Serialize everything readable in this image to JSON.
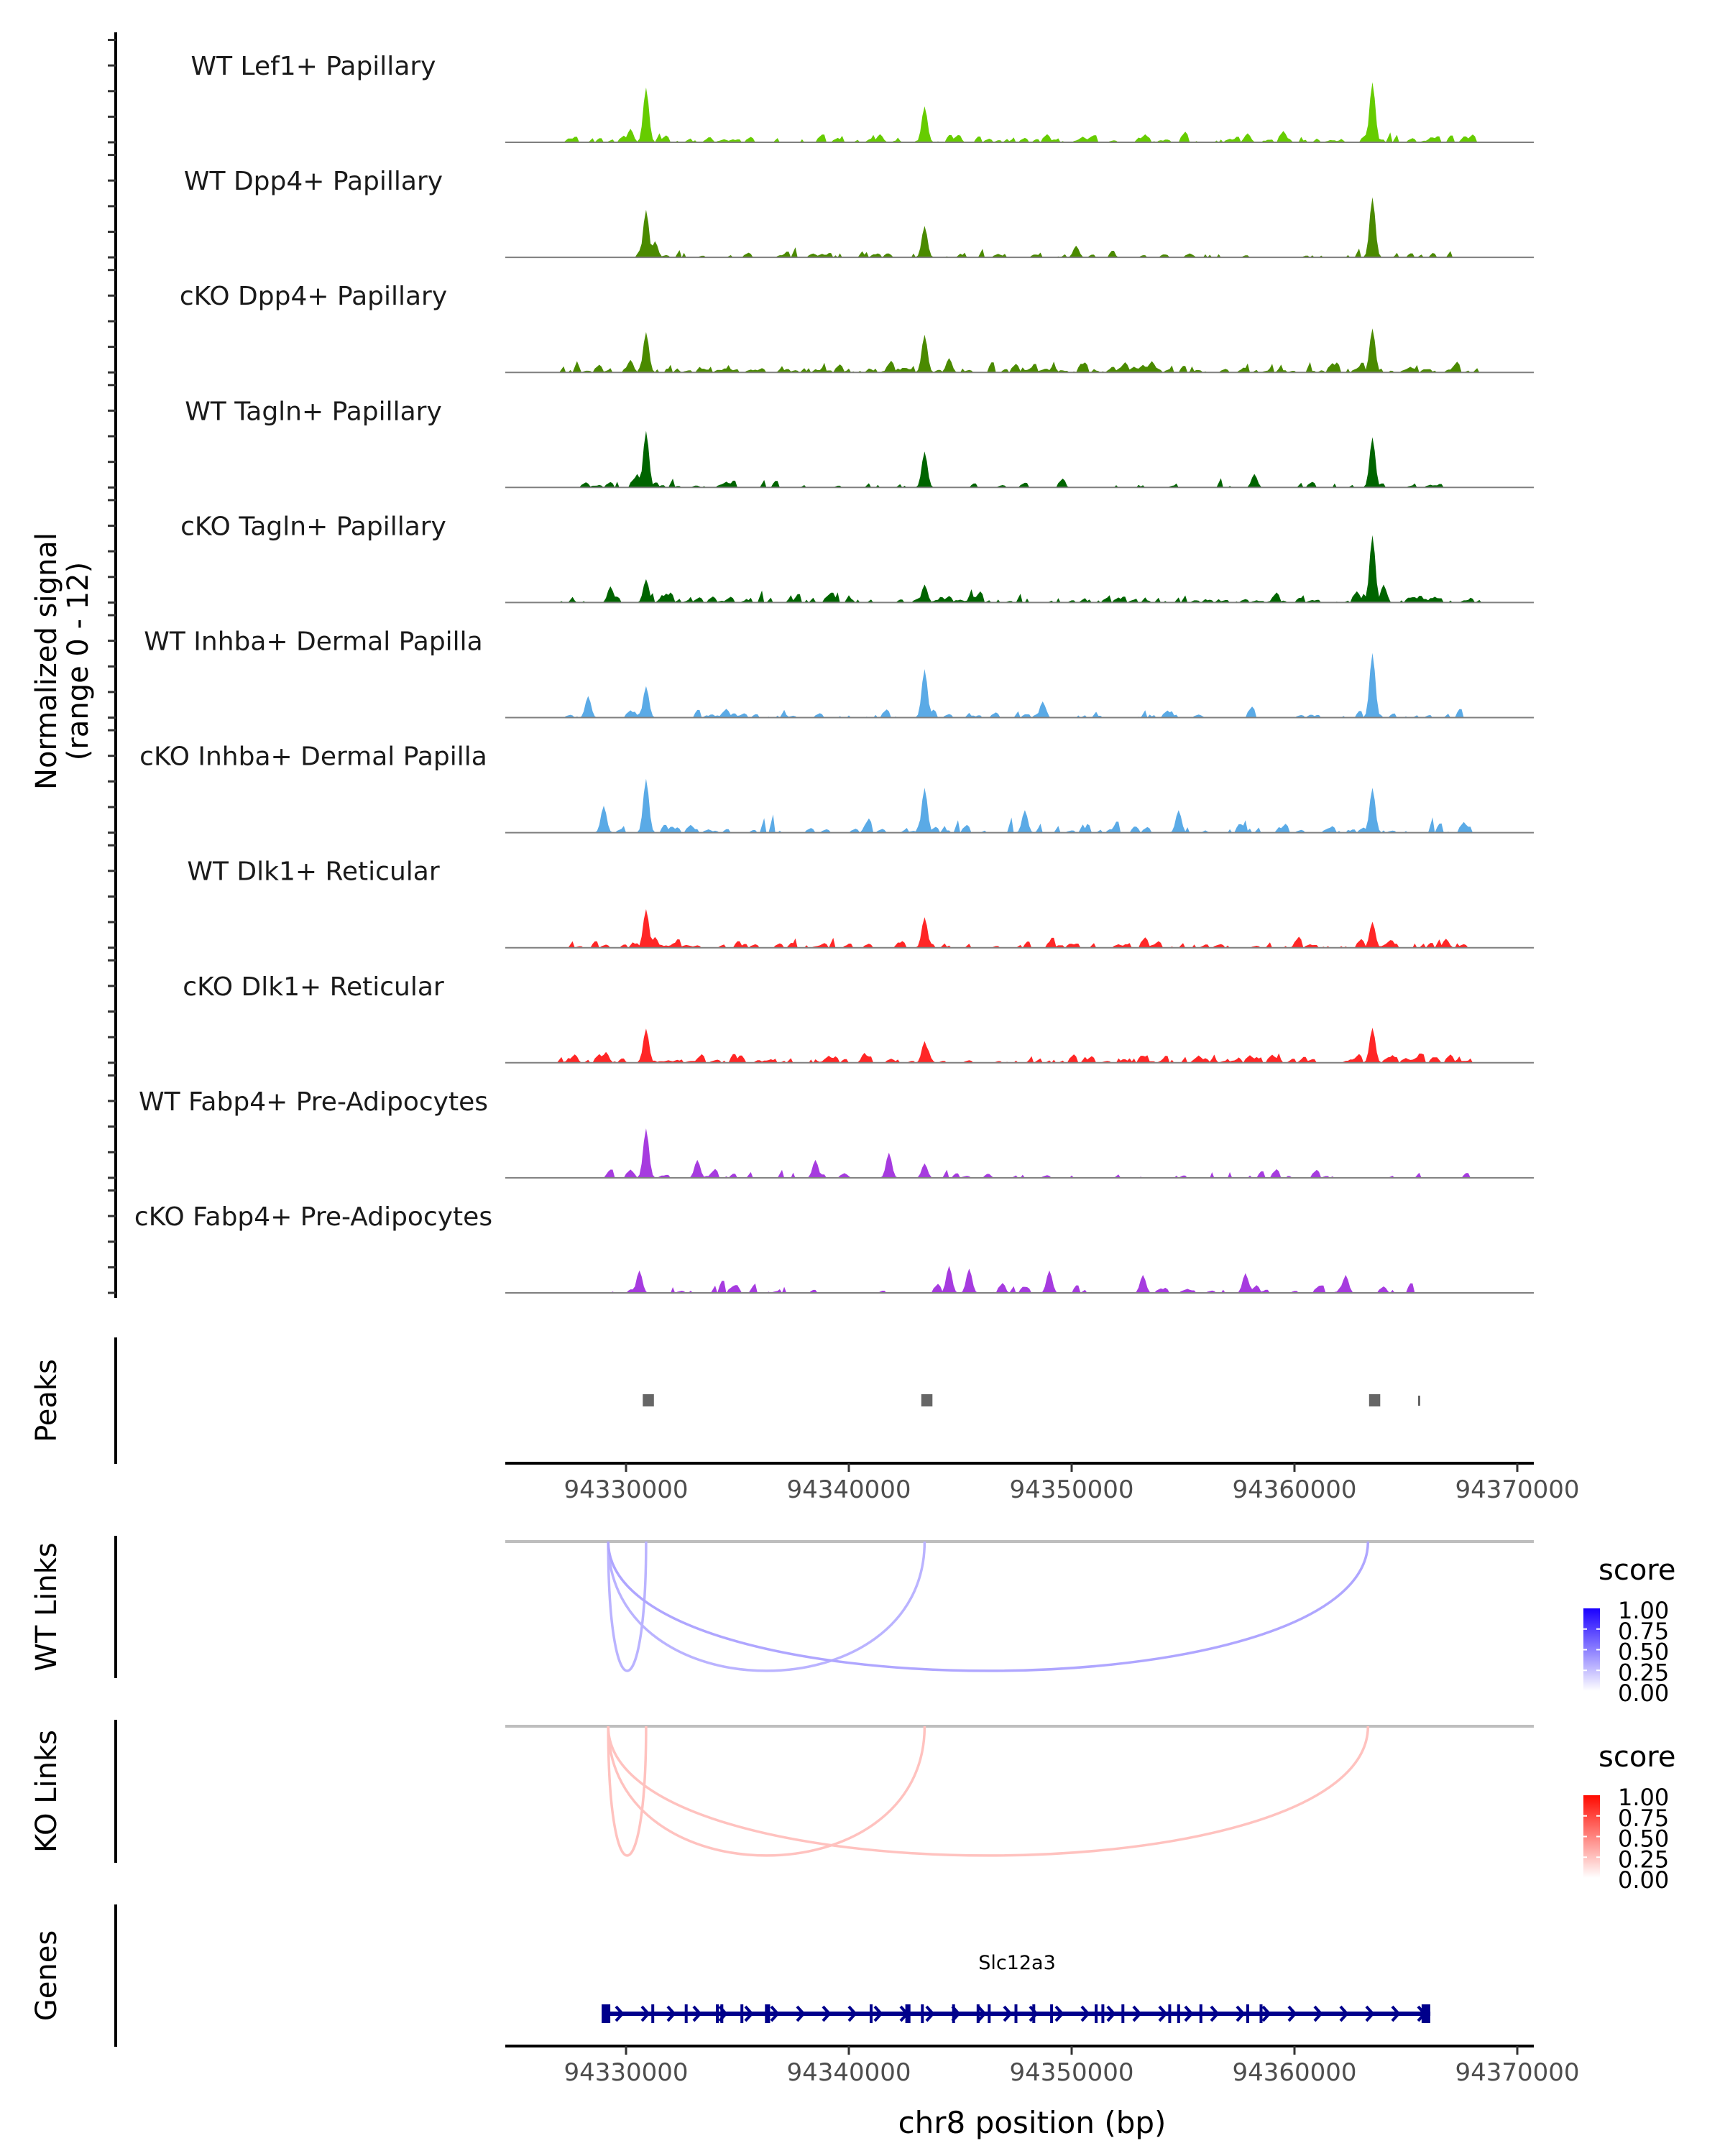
{
  "chart_data": {
    "type": "area",
    "title": "",
    "xlabel": "chr8 position (bp)",
    "chromosome": "chr8",
    "xlim": [
      94324700,
      94370800
    ],
    "x_ticks": [
      94330000,
      94340000,
      94350000,
      94360000,
      94370000
    ],
    "x_tick_labels": [
      "94330000",
      "94340000",
      "94350000",
      "94360000",
      "94370000"
    ],
    "coverage": {
      "ylabel": "Normalized signal\n(range 0 - 12)",
      "ylabel_line1": "Normalized signal",
      "ylabel_line2": "(range 0 - 12)",
      "ylim": [
        0,
        12
      ],
      "series": [
        {
          "name": "WT Lef1+ Papillary",
          "color": "#66CC00",
          "density": 0.75,
          "noise": 1.2,
          "start": 94326800,
          "end": 94368300,
          "peaks": [
            [
              94330900,
              6.1
            ],
            [
              94343400,
              4.0
            ],
            [
              94363500,
              6.7
            ],
            [
              94330200,
              1.5
            ],
            [
              94341400,
              0.9
            ],
            [
              94357900,
              1.0
            ]
          ]
        },
        {
          "name": "WT Dpp4+ Papillary",
          "color": "#4A8A00",
          "density": 0.35,
          "noise": 1.1,
          "start": 94328000,
          "end": 94367500,
          "peaks": [
            [
              94330900,
              5.3
            ],
            [
              94343400,
              3.5
            ],
            [
              94363500,
              6.7
            ],
            [
              94331300,
              1.8
            ],
            [
              94350200,
              1.3
            ]
          ]
        },
        {
          "name": "cKO Dpp4+ Papillary",
          "color": "#4A8A00",
          "density": 0.9,
          "noise": 1.3,
          "start": 94326800,
          "end": 94368300,
          "peaks": [
            [
              94330900,
              4.5
            ],
            [
              94343400,
              4.2
            ],
            [
              94363500,
              4.9
            ],
            [
              94330200,
              1.4
            ],
            [
              94344500,
              1.6
            ]
          ]
        },
        {
          "name": "WT Tagln+ Papillary",
          "color": "#006400",
          "density": 0.3,
          "noise": 1.2,
          "start": 94327500,
          "end": 94367000,
          "peaks": [
            [
              94330900,
              6.3
            ],
            [
              94343400,
              4.0
            ],
            [
              94363500,
              5.6
            ],
            [
              94330500,
              1.5
            ],
            [
              94358200,
              1.5
            ]
          ]
        },
        {
          "name": "cKO Tagln+ Papillary",
          "color": "#006400",
          "density": 0.75,
          "noise": 1.4,
          "start": 94326800,
          "end": 94368500,
          "peaks": [
            [
              94363500,
              7.5
            ],
            [
              94330900,
              2.6
            ],
            [
              94343400,
              2.0
            ],
            [
              94364000,
              2.0
            ],
            [
              94329300,
              1.8
            ]
          ]
        },
        {
          "name": "WT Inhba+ Dermal Papilla",
          "color": "#5AAAE6",
          "density": 0.45,
          "noise": 1.3,
          "start": 94327100,
          "end": 94368200,
          "peaks": [
            [
              94363500,
              7.2
            ],
            [
              94343400,
              5.4
            ],
            [
              94330900,
              3.5
            ],
            [
              94328300,
              2.4
            ],
            [
              94348700,
              1.8
            ]
          ]
        },
        {
          "name": "cKO Inhba+ Dermal Papilla",
          "color": "#5AAAE6",
          "density": 0.35,
          "noise": 2.0,
          "start": 94328000,
          "end": 94368200,
          "peaks": [
            [
              94330900,
              6.0
            ],
            [
              94343400,
              5.0
            ],
            [
              94363500,
              5.0
            ],
            [
              94329000,
              3.0
            ],
            [
              94347900,
              2.5
            ],
            [
              94354800,
              2.5
            ]
          ]
        },
        {
          "name": "WT Dlk1+ Reticular",
          "color": "#FF2626",
          "density": 0.45,
          "noise": 1.2,
          "start": 94327100,
          "end": 94368000,
          "peaks": [
            [
              94330900,
              4.3
            ],
            [
              94343400,
              3.4
            ],
            [
              94363500,
              2.9
            ],
            [
              94331300,
              1.2
            ],
            [
              94366800,
              1.0
            ]
          ]
        },
        {
          "name": "cKO Dlk1+ Reticular",
          "color": "#FF2626",
          "density": 0.85,
          "noise": 1.2,
          "start": 94326800,
          "end": 94368300,
          "peaks": [
            [
              94330900,
              3.8
            ],
            [
              94343400,
              2.4
            ],
            [
              94363500,
              3.9
            ],
            [
              94329100,
              1.2
            ],
            [
              94340700,
              1.1
            ]
          ]
        },
        {
          "name": "WT Fabp4+ Pre-Adipocytes",
          "color": "#A63BDF",
          "density": 0.25,
          "noise": 1.4,
          "start": 94328900,
          "end": 94368000,
          "peaks": [
            [
              94330900,
              5.5
            ],
            [
              94341800,
              2.8
            ],
            [
              94333200,
              2.0
            ],
            [
              94338500,
              2.0
            ],
            [
              94343400,
              1.6
            ]
          ]
        },
        {
          "name": "cKO Fabp4+ Pre-Adipocytes",
          "color": "#A63BDF",
          "density": 0.35,
          "noise": 1.6,
          "start": 94329000,
          "end": 94365600,
          "peaks": [
            [
              94344500,
              3.0
            ],
            [
              94345400,
              2.7
            ],
            [
              94349000,
              2.5
            ],
            [
              94330600,
              2.5
            ],
            [
              94362300,
              2.0
            ],
            [
              94353200,
              2.0
            ],
            [
              94357800,
              2.2
            ]
          ]
        }
      ]
    },
    "peaks_track": {
      "label": "Peaks",
      "color": "#666666",
      "regions": [
        [
          94330750,
          94331250
        ],
        [
          94343250,
          94343750
        ],
        [
          94363350,
          94363850
        ],
        [
          94365550,
          94365610
        ]
      ]
    },
    "links": [
      {
        "label": "WT Links",
        "legend_title": "score",
        "low_color": "#FFFFFF",
        "high_color": "#1A00FF",
        "legend_ticks": [
          "1.00",
          "0.75",
          "0.50",
          "0.25",
          "0.00"
        ],
        "arcs": [
          {
            "start": 94329200,
            "end": 94330900,
            "score": 0.3
          },
          {
            "start": 94329200,
            "end": 94343400,
            "score": 0.3
          },
          {
            "start": 94329200,
            "end": 94363300,
            "score": 0.35
          }
        ]
      },
      {
        "label": "KO Links",
        "legend_title": "score",
        "low_color": "#FFFFFF",
        "high_color": "#FF0A00",
        "legend_ticks": [
          "1.00",
          "0.75",
          "0.50",
          "0.25",
          "0.00"
        ],
        "arcs": [
          {
            "start": 94329200,
            "end": 94330900,
            "score": 0.25
          },
          {
            "start": 94329200,
            "end": 94343400,
            "score": 0.25
          },
          {
            "start": 94329200,
            "end": 94363300,
            "score": 0.25
          }
        ]
      }
    ],
    "genes": {
      "label": "Genes",
      "color": "#00008B",
      "items": [
        {
          "name": "Slc12a3",
          "start": 94329000,
          "end": 94366100,
          "strand": "+",
          "exons": [
            94329100,
            94331200,
            94332700,
            94334100,
            94334300,
            94335200,
            94336300,
            94336400,
            94341000,
            94342600,
            94342700,
            94343300,
            94344700,
            94345800,
            94346300,
            94347500,
            94348300,
            94349100,
            94351100,
            94351400,
            94352300,
            94354400,
            94354800,
            94355800,
            94357900,
            94358500,
            94365900
          ]
        }
      ]
    }
  }
}
